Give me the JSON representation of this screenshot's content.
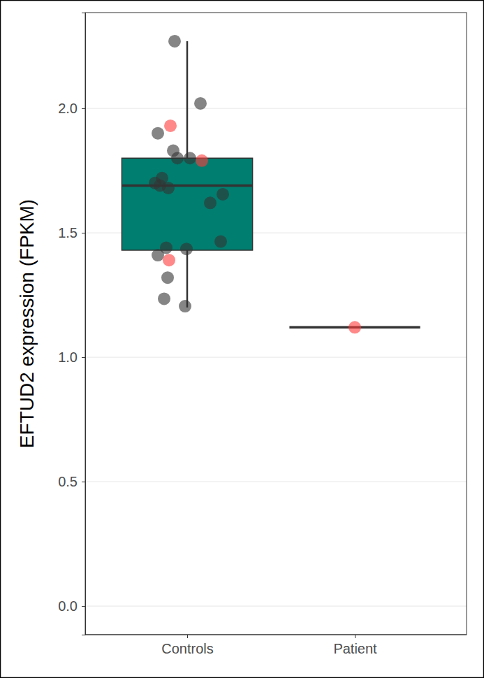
{
  "chart_data": {
    "type": "box",
    "y_label": "EFTUD2 expression (FPKM)",
    "categories": [
      "Controls",
      "Patient"
    ],
    "boxes": [
      {
        "whisker_low": 1.2,
        "q1": 1.43,
        "median": 1.69,
        "q3": 1.8,
        "whisker_high": 2.27
      },
      {
        "whisker_low": 1.12,
        "q1": 1.12,
        "median": 1.12,
        "q3": 1.12,
        "whisker_high": 1.12
      }
    ],
    "points": [
      {
        "values": [
          2.27,
          2.02,
          1.93,
          1.9,
          1.83,
          1.8,
          1.8,
          1.79,
          1.72,
          1.7,
          1.69,
          1.68,
          1.655,
          1.62,
          1.465,
          1.44,
          1.435,
          1.41,
          1.39,
          1.32,
          1.235,
          1.205
        ],
        "colors": [
          "#333333",
          "#333333",
          "#ff3b3b",
          "#333333",
          "#333333",
          "#333333",
          "#333333",
          "#ff3b3b",
          "#333333",
          "#333333",
          "#333333",
          "#333333",
          "#333333",
          "#333333",
          "#333333",
          "#333333",
          "#333333",
          "#333333",
          "#ff3b3b",
          "#333333",
          "#333333",
          "#333333"
        ]
      },
      {
        "values": [
          1.12
        ],
        "colors": [
          "#ff3b3b"
        ]
      }
    ],
    "color": "#007e6f",
    "ylim": [
      -0.115,
      2.385
    ],
    "yticks": [
      {
        "value": 0,
        "label": "0.0"
      },
      0.5,
      {
        "value": 1,
        "label": "1.0"
      },
      1.5,
      {
        "value": 2,
        "label": "2.0"
      }
    ],
    "grid": true
  }
}
